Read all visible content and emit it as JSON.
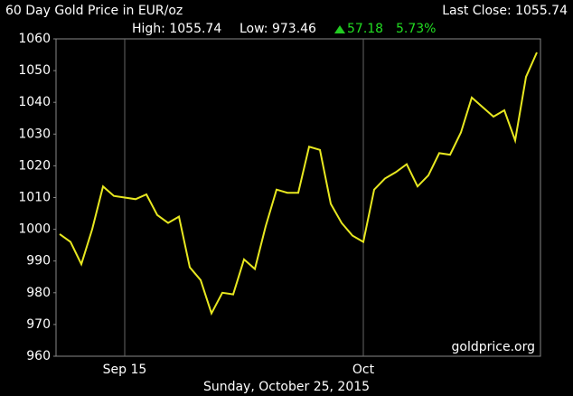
{
  "chart_data": {
    "type": "line",
    "title": "60 Day Gold Price in EUR/oz",
    "last_close": "Last Close: 1055.74",
    "high": "High: 1055.74",
    "low": "Low: 973.46",
    "change": "57.18",
    "change_pct": "5.73%",
    "watermark": "goldprice.org",
    "date": "Sunday, October 25, 2015",
    "categories": [
      null,
      null,
      null,
      null,
      null,
      null,
      "Sep 15",
      null,
      null,
      null,
      null,
      null,
      null,
      null,
      null,
      null,
      null,
      null,
      null,
      null,
      null,
      null,
      null,
      null,
      null,
      null,
      null,
      null,
      "Oct",
      null,
      null,
      null,
      null,
      null,
      null,
      null,
      null,
      null,
      null,
      null,
      null,
      null,
      null,
      null,
      null
    ],
    "values": [
      998.5,
      996,
      989,
      1000,
      1013.5,
      1010.5,
      1010,
      1009.5,
      1011,
      1004.5,
      1002,
      1004,
      988,
      984,
      973.5,
      980,
      979.5,
      990.5,
      987.5,
      1001,
      1012.5,
      1011.5,
      1011.5,
      1026,
      1025,
      1008,
      1002,
      998,
      996,
      1012.5,
      1016,
      1018,
      1020.5,
      1013.5,
      1017,
      1024,
      1023.5,
      1030.5,
      1041.5,
      1038.5,
      1035.5,
      1037.5,
      1028,
      1048,
      1055.74
    ],
    "color": "#e8e820",
    "ylim": [
      960,
      1060
    ],
    "yticks": [
      960,
      970,
      980,
      990,
      1000,
      1010,
      1020,
      1030,
      1040,
      1050,
      1060
    ]
  }
}
